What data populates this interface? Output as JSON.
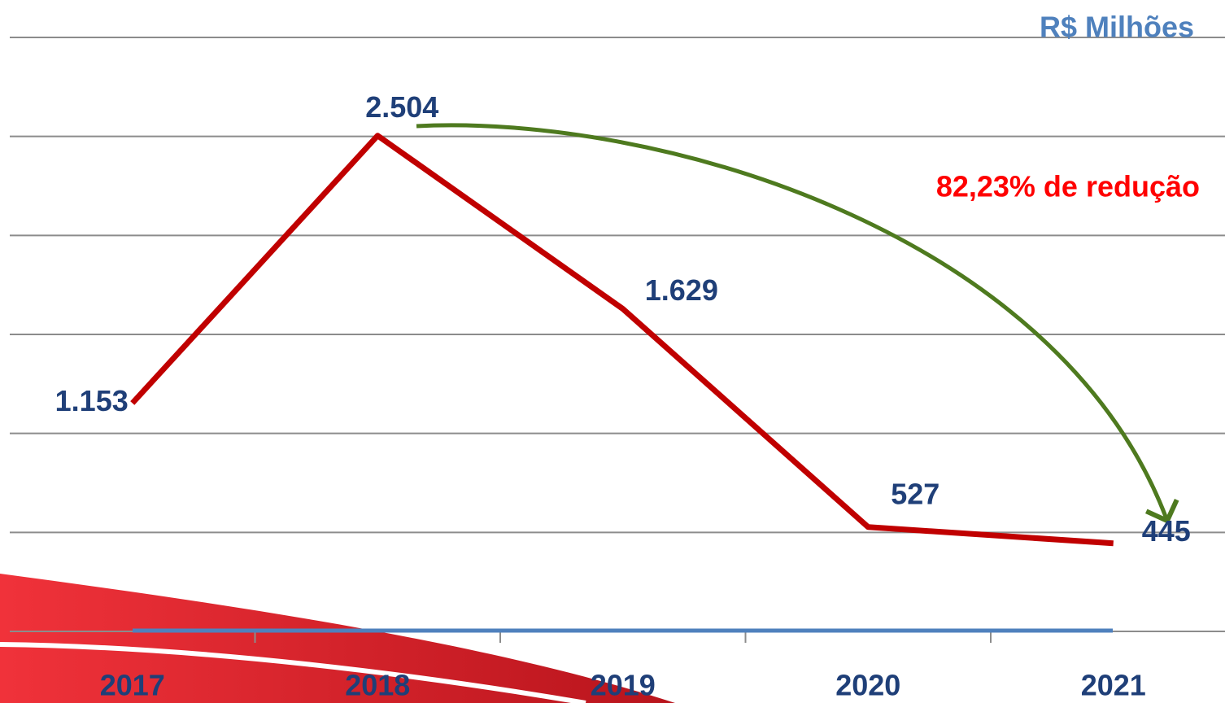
{
  "chart_data": {
    "type": "line",
    "unit_label": "R$ Milhões",
    "annotation": "82,23% de redução",
    "categories": [
      "2017",
      "2018",
      "2019",
      "2020",
      "2021"
    ],
    "values": [
      1153,
      2504,
      1629,
      527,
      445
    ],
    "value_labels": [
      "1.153",
      "2.504",
      "1.629",
      "527",
      "445"
    ],
    "color": "#c00000",
    "ylim": [
      0,
      3000
    ],
    "yticks": [
      0,
      500,
      1000,
      1500,
      2000,
      2500,
      3000
    ],
    "grid": true
  }
}
